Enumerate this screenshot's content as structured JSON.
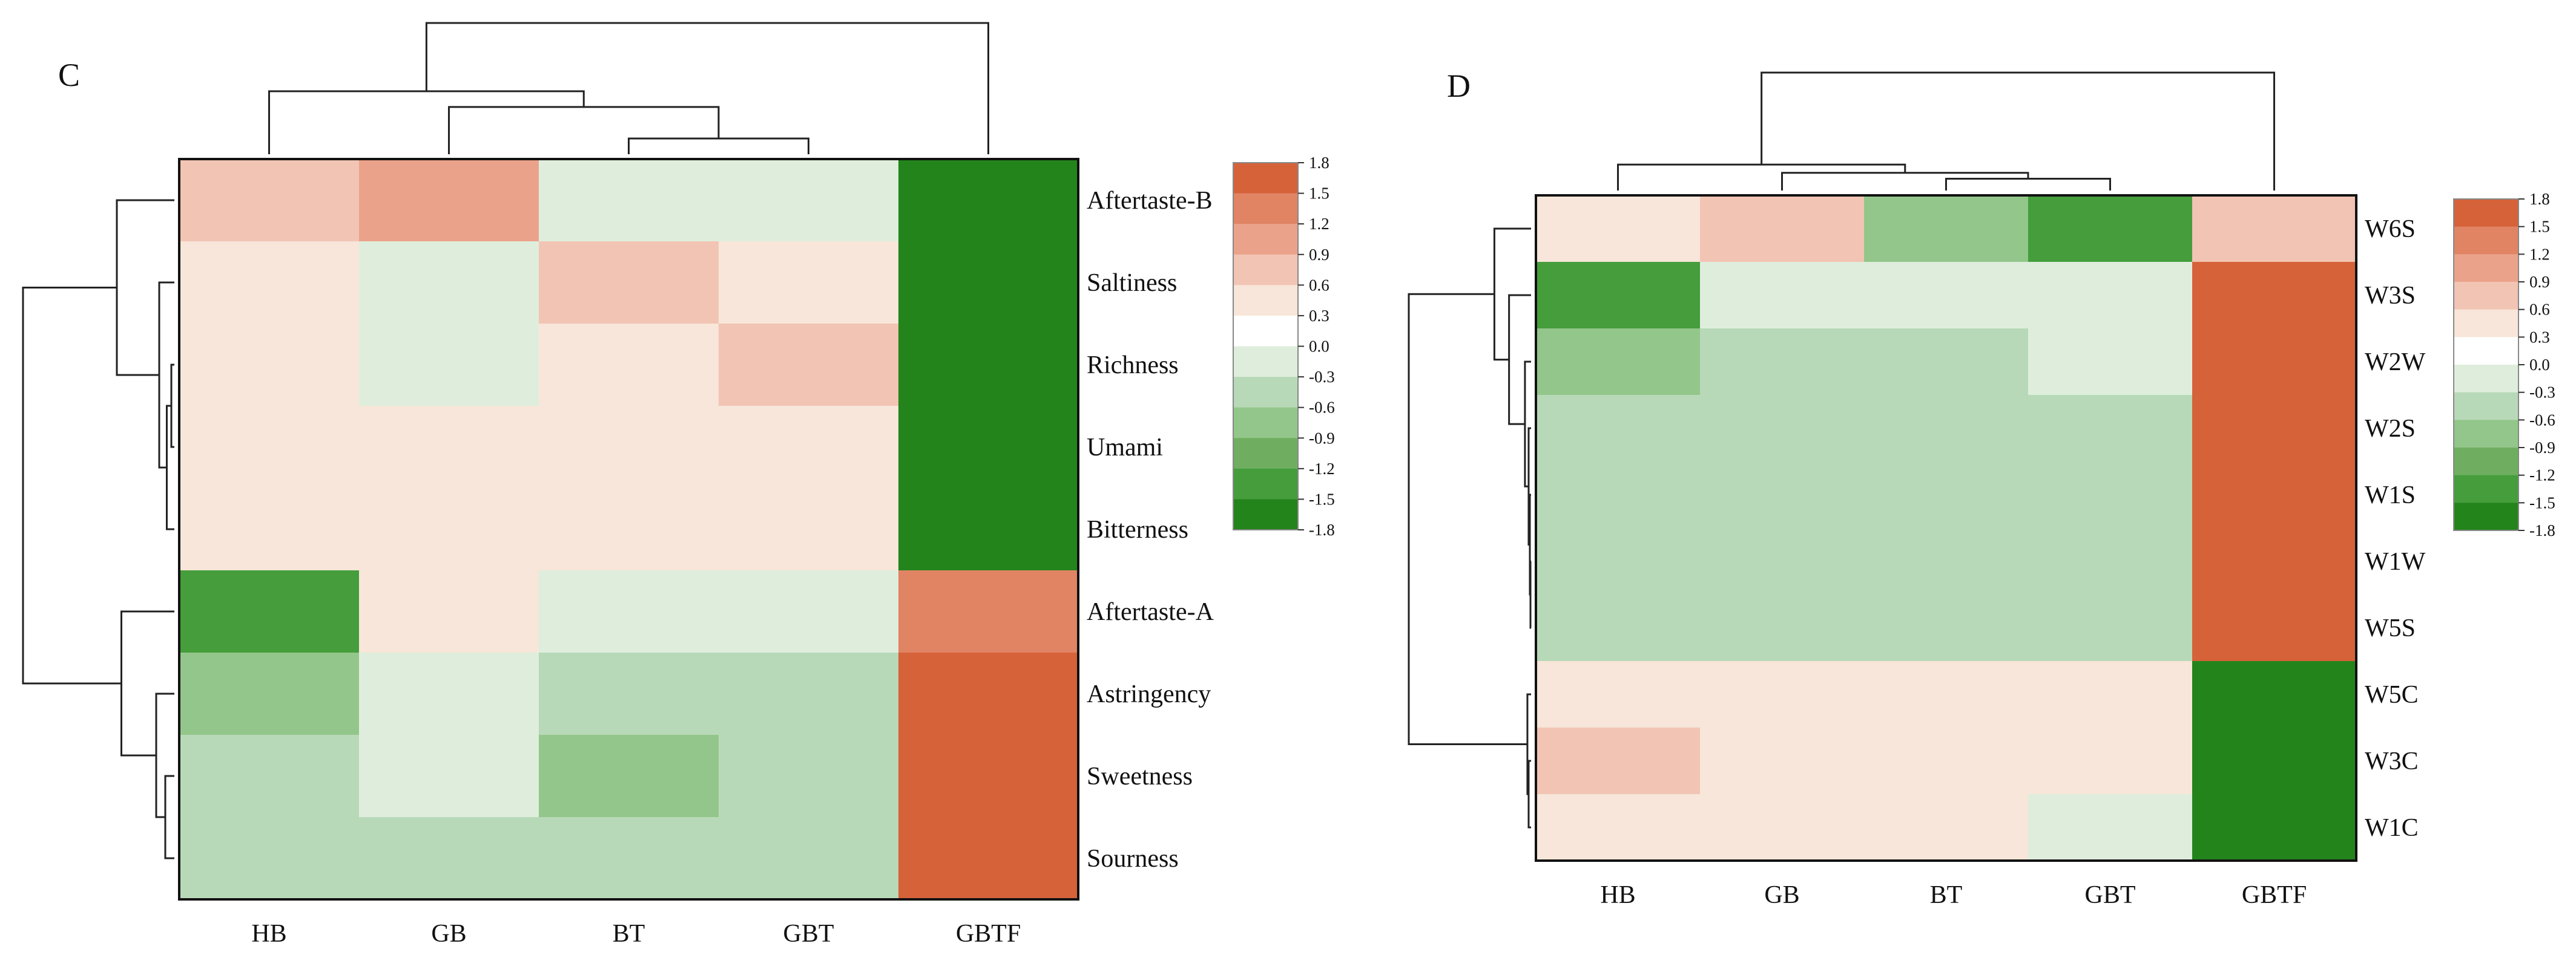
{
  "chart_data": [
    {
      "type": "heatmap",
      "panel_label": "C",
      "columns": [
        "HB",
        "GB",
        "BT",
        "GBT",
        "GBTF"
      ],
      "rows": [
        "Aftertaste-B",
        "Saltiness",
        "Richness",
        "Umami",
        "Bitterness",
        "Aftertaste-A",
        "Astringency",
        "Sweetness",
        "Sourness"
      ],
      "values": [
        [
          0.8,
          1.0,
          -0.2,
          -0.2,
          -1.8
        ],
        [
          0.5,
          0.0,
          0.8,
          0.5,
          -1.8
        ],
        [
          0.5,
          0.0,
          0.5,
          0.8,
          -1.8
        ],
        [
          0.5,
          0.5,
          0.5,
          0.5,
          -1.8
        ],
        [
          0.5,
          0.5,
          0.5,
          0.5,
          -1.8
        ],
        [
          -1.3,
          0.5,
          -0.2,
          -0.2,
          1.3
        ],
        [
          -0.7,
          -0.2,
          -0.4,
          -0.4,
          1.6
        ],
        [
          -0.4,
          -0.2,
          -0.7,
          -0.4,
          1.6
        ],
        [
          -0.4,
          -0.4,
          -0.4,
          -0.4,
          1.6
        ]
      ],
      "color_scale": {
        "min": -1.8,
        "max": 1.8,
        "ticks": [
          "1.8",
          "1.5",
          "1.2",
          "0.9",
          "0.6",
          "0.3",
          "0.0",
          "-0.3",
          "-0.6",
          "-0.9",
          "-1.2",
          "-1.5",
          "-1.8"
        ],
        "colors_high_to_low": [
          "#d6623a",
          "#e08464",
          "#eba28a",
          "#f2c4b4",
          "#f7e6d9",
          "#ffffff",
          "#dfeedc",
          "#b8d9b8",
          "#93c68a",
          "#6fae60",
          "#459d3c",
          "#24841c"
        ]
      },
      "col_dendrogram": {
        "merges": [
          [
            2,
            3,
            0.12
          ],
          [
            1,
            5,
            0.36
          ],
          [
            0,
            6,
            0.48
          ],
          [
            7,
            4,
            1.0
          ]
        ]
      },
      "row_dendrogram": {
        "merges": [
          [
            2,
            3,
            0.02
          ],
          [
            4,
            9,
            0.05
          ],
          [
            1,
            10,
            0.1
          ],
          [
            0,
            11,
            0.38
          ],
          [
            7,
            8,
            0.06
          ],
          [
            6,
            13,
            0.12
          ],
          [
            5,
            14,
            0.35
          ],
          [
            12,
            15,
            1.0
          ]
        ]
      }
    },
    {
      "type": "heatmap",
      "panel_label": "D",
      "columns": [
        "HB",
        "GB",
        "BT",
        "GBT",
        "GBTF"
      ],
      "rows": [
        "W6S",
        "W3S",
        "W2W",
        "W2S",
        "W1S",
        "W1W",
        "W5S",
        "W5C",
        "W3C",
        "W1C"
      ],
      "values": [
        [
          0.5,
          0.8,
          -0.7,
          -1.3,
          0.8
        ],
        [
          -1.3,
          -0.2,
          -0.2,
          -0.2,
          1.7
        ],
        [
          -0.7,
          -0.4,
          -0.4,
          -0.2,
          1.7
        ],
        [
          -0.4,
          -0.4,
          -0.4,
          -0.4,
          1.7
        ],
        [
          -0.4,
          -0.4,
          -0.4,
          -0.4,
          1.7
        ],
        [
          -0.4,
          -0.4,
          -0.4,
          -0.4,
          1.7
        ],
        [
          -0.4,
          -0.4,
          -0.4,
          -0.4,
          1.7
        ],
        [
          0.5,
          0.5,
          0.5,
          0.5,
          -1.8
        ],
        [
          0.8,
          0.5,
          0.5,
          0.5,
          -1.8
        ],
        [
          0.5,
          0.5,
          0.5,
          0.0,
          -1.8
        ]
      ],
      "color_scale": {
        "min": -1.8,
        "max": 1.8,
        "ticks": [
          "1.8",
          "1.5",
          "1.2",
          "0.9",
          "0.6",
          "0.3",
          "0.0",
          "-0.3",
          "-0.6",
          "-0.9",
          "-1.2",
          "-1.5",
          "-1.8"
        ],
        "colors_high_to_low": [
          "#d6623a",
          "#e08464",
          "#eba28a",
          "#f2c4b4",
          "#f7e6d9",
          "#ffffff",
          "#dfeedc",
          "#b8d9b8",
          "#93c68a",
          "#6fae60",
          "#459d3c",
          "#24841c"
        ]
      },
      "col_dendrogram": {
        "merges": [
          [
            2,
            3,
            0.1
          ],
          [
            1,
            5,
            0.15
          ],
          [
            0,
            6,
            0.22
          ],
          [
            7,
            4,
            1.0
          ]
        ]
      },
      "row_dendrogram": {
        "merges": [
          [
            5,
            6,
            0.005
          ],
          [
            4,
            10,
            0.01
          ],
          [
            3,
            11,
            0.02
          ],
          [
            2,
            12,
            0.05
          ],
          [
            1,
            13,
            0.18
          ],
          [
            0,
            14,
            0.3
          ],
          [
            8,
            9,
            0.02
          ],
          [
            7,
            16,
            0.03
          ],
          [
            15,
            17,
            1.0
          ]
        ]
      }
    }
  ]
}
